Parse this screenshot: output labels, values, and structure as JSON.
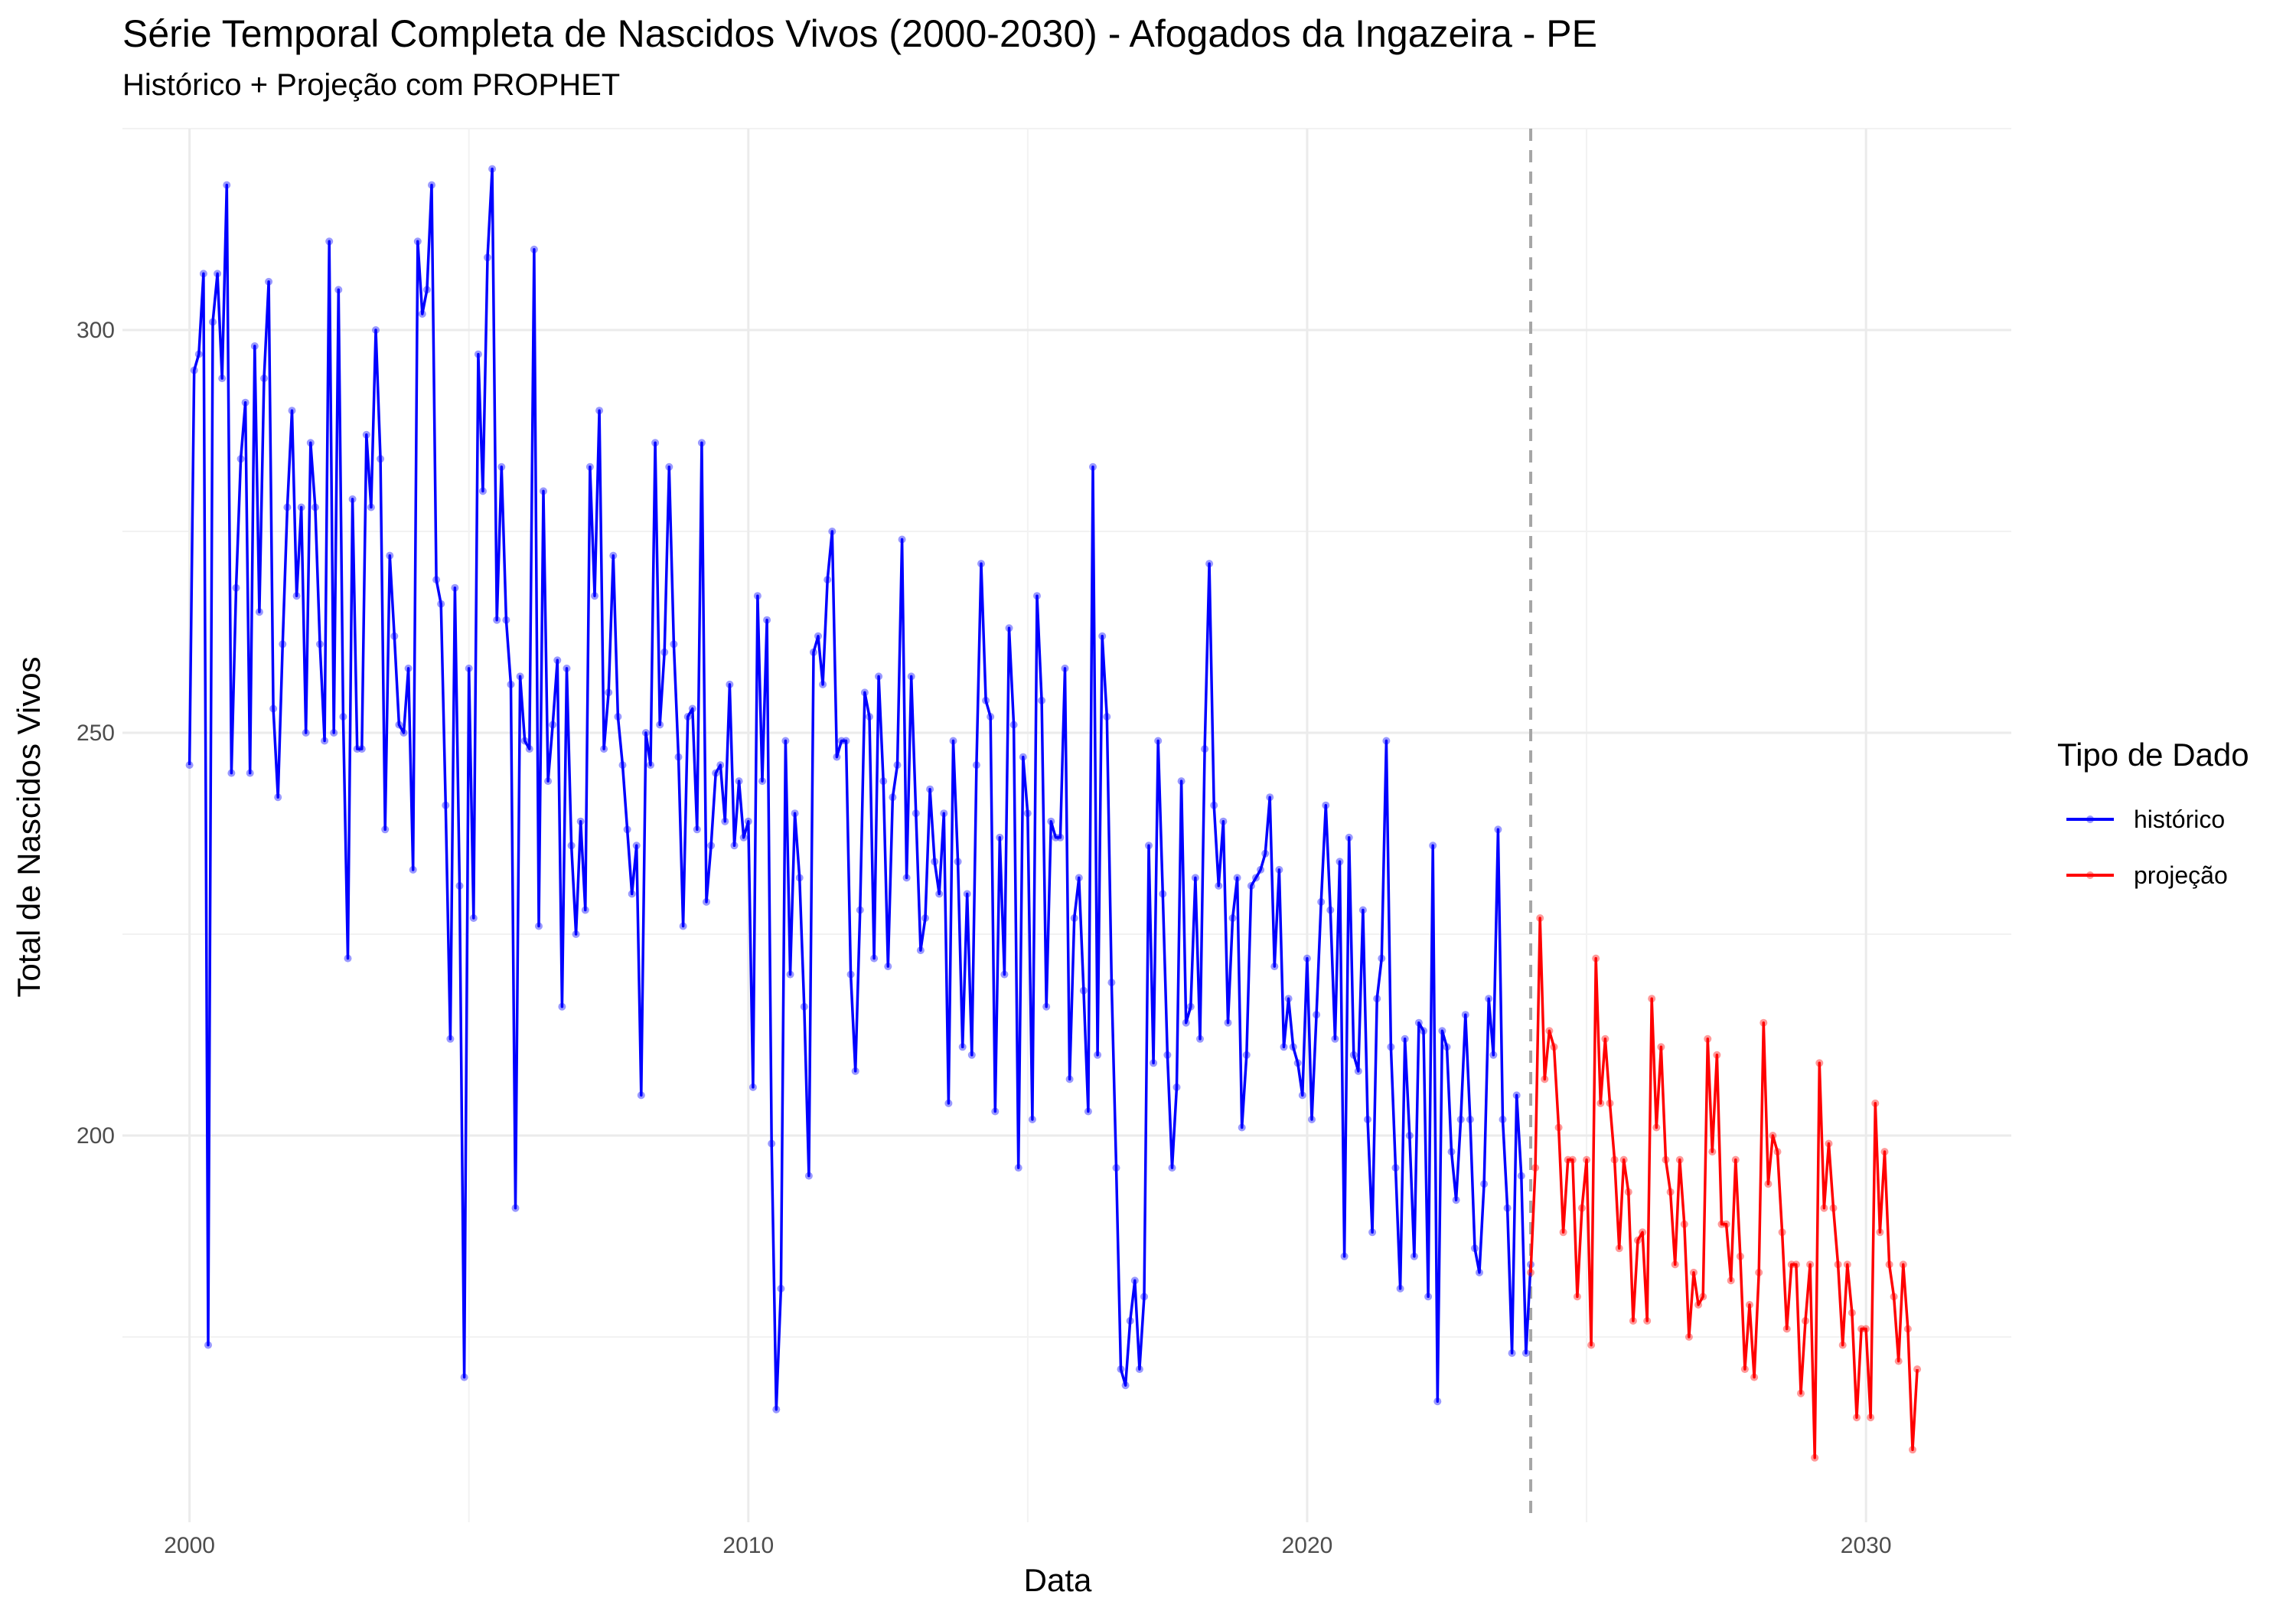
{
  "chart_data": {
    "type": "line",
    "title": "Série Temporal Completa de Nascidos Vivos (2000-2030) -  Afogados da Ingazeira - PE",
    "subtitle": "Histórico + Projeção com PROPHET",
    "xlabel": "Data",
    "ylabel": "Total de Nascidos Vivos",
    "xlim": [
      1998.8,
      2032.6
    ],
    "ylim": [
      152,
      325
    ],
    "x_ticks": [
      2000,
      2010,
      2020,
      2030
    ],
    "y_ticks": [
      200,
      250,
      300
    ],
    "grid": true,
    "vline_x": 2024.0,
    "legend": {
      "title": "Tipo de Dado",
      "position": "right",
      "entries": [
        {
          "label": "histórico",
          "color": "#0000ff"
        },
        {
          "label": "projeção",
          "color": "#ff0000"
        }
      ]
    },
    "series": [
      {
        "name": "histórico",
        "color": "#0000ff",
        "start": 2000.0,
        "step": 0.08333,
        "values": [
          246,
          295,
          297,
          307,
          174,
          301,
          307,
          294,
          318,
          245,
          268,
          284,
          291,
          245,
          298,
          265,
          294,
          306,
          253,
          242,
          261,
          278,
          290,
          267,
          278,
          250,
          286,
          278,
          261,
          249,
          311,
          250,
          305,
          252,
          222,
          279,
          248,
          248,
          287,
          278,
          300,
          284,
          238,
          272,
          262,
          251,
          250,
          258,
          233,
          311,
          302,
          305,
          318,
          269,
          266,
          241,
          212,
          268,
          231,
          170,
          258,
          227,
          297,
          280,
          309,
          320,
          264,
          283,
          264,
          256,
          191,
          257,
          249,
          248,
          310,
          226,
          280,
          244,
          251,
          259,
          216,
          258,
          236,
          225,
          239,
          228,
          283,
          267,
          290,
          248,
          255,
          272,
          252,
          246,
          238,
          230,
          236,
          205,
          250,
          246,
          286,
          251,
          260,
          283,
          261,
          247,
          226,
          252,
          253,
          238,
          286,
          229,
          236,
          245,
          246,
          239,
          256,
          236,
          244,
          237,
          239,
          206,
          267,
          244,
          264,
          199,
          166,
          181,
          249,
          220,
          240,
          232,
          216,
          195,
          260,
          262,
          256,
          269,
          275,
          247,
          249,
          249,
          220,
          208,
          228,
          255,
          252,
          222,
          257,
          244,
          221,
          242,
          246,
          274,
          232,
          257,
          240,
          223,
          227,
          243,
          234,
          230,
          240,
          204,
          249,
          234,
          211,
          230,
          210,
          246,
          271,
          254,
          252,
          203,
          237,
          220,
          263,
          251,
          196,
          247,
          240,
          202,
          267,
          254,
          216,
          239,
          237,
          237,
          258,
          207,
          227,
          232,
          218,
          203,
          283,
          210,
          262,
          252,
          219,
          196,
          171,
          169,
          177,
          182,
          171,
          180,
          236,
          209,
          249,
          230,
          210,
          196,
          206,
          244,
          214,
          216,
          232,
          212,
          248,
          271,
          241,
          231,
          239,
          214,
          227,
          232,
          201,
          210,
          231,
          232,
          233,
          235,
          242,
          221,
          233,
          211,
          217,
          211,
          209,
          205,
          222,
          202,
          215,
          229,
          241,
          228,
          212,
          234,
          185,
          237,
          210,
          208,
          228,
          202,
          188,
          217,
          222,
          249,
          211,
          196,
          181,
          212,
          200,
          185,
          214,
          213,
          180,
          236,
          167,
          213,
          211,
          198,
          192,
          202,
          215,
          202,
          186,
          183,
          194,
          217,
          210,
          238,
          202,
          191,
          173,
          205,
          195,
          173,
          184
        ]
      },
      {
        "name": "projeção",
        "color": "#ff0000",
        "start": 2024.0,
        "step": 0.08333,
        "values": [
          183,
          196,
          227,
          207,
          213,
          211,
          201,
          188,
          197,
          197,
          180,
          191,
          197,
          174,
          222,
          204,
          212,
          204,
          197,
          186,
          197,
          193,
          177,
          187,
          188,
          177,
          217,
          201,
          211,
          197,
          193,
          184,
          197,
          189,
          175,
          183,
          179,
          180,
          212,
          198,
          210,
          189,
          189,
          182,
          197,
          185,
          171,
          179,
          170,
          183,
          214,
          194,
          200,
          198,
          188,
          176,
          184,
          184,
          168,
          177,
          184,
          160,
          209,
          191,
          199,
          191,
          184,
          174,
          184,
          178,
          165,
          176,
          176,
          165,
          204,
          188,
          198,
          184,
          180,
          172,
          184,
          176,
          161,
          171
        ]
      }
    ]
  }
}
